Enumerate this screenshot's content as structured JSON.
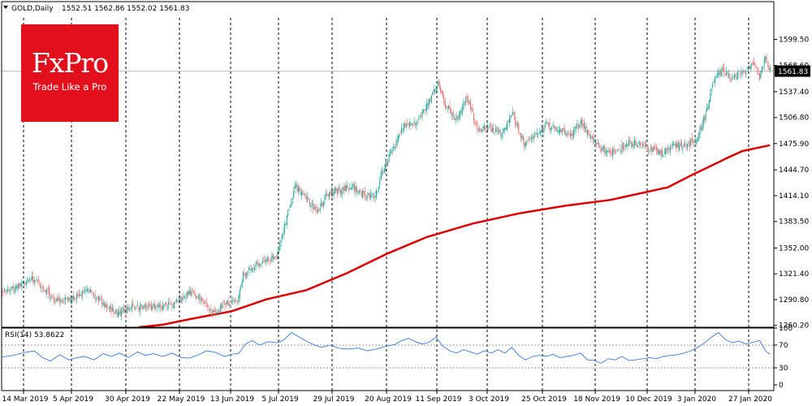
{
  "header": {
    "symbol": "GOLD,Daily",
    "ohlc": "1552.51 1562.86 1552.02 1561.83"
  },
  "logo": {
    "name": "FxPro",
    "tagline": "Trade Like a Pro"
  },
  "colors": {
    "bull": "#26a69a",
    "bear": "#e57373",
    "ma_line": "#dd0000",
    "rsi_line": "#3a7ad6",
    "price_tag_bg": "#000000",
    "grid": "#000000",
    "logo_bg": "#e30f1c"
  },
  "chart_data": [
    {
      "type": "candlestick",
      "title": "",
      "symbol": "GOLD,Daily",
      "current_price": "1561.83",
      "y_ticks": [
        "1599.50",
        "1568.60",
        "1537.40",
        "1506.80",
        "1475.90",
        "1444.70",
        "1414.10",
        "1383.50",
        "1352.00",
        "1321.40",
        "1290.80",
        "1260.20"
      ],
      "y_tick_values": [
        1599.5,
        1568.6,
        1537.4,
        1506.8,
        1475.9,
        1444.7,
        1414.1,
        1383.5,
        1352.0,
        1321.4,
        1290.8,
        1260.2
      ],
      "ylim": [
        1258,
        1625
      ],
      "x_ticks": [
        "14 Mar 2019",
        "5 Apr 2019",
        "30 Apr 2019",
        "22 May 2019",
        "13 Jun 2019",
        "5 Jul 2019",
        "29 Jul 2019",
        "20 Aug 2019",
        "11 Sep 2019",
        "3 Oct 2019",
        "25 Oct 2019",
        "18 Nov 2019",
        "10 Dec 2019",
        "3 Jan 2020",
        "27 Jan 2020"
      ],
      "close_path": [
        [
          0,
          1302
        ],
        [
          15,
          1306
        ],
        [
          25,
          1316
        ],
        [
          35,
          1308
        ],
        [
          45,
          1290
        ],
        [
          60,
          1290
        ],
        [
          75,
          1303
        ],
        [
          90,
          1282
        ],
        [
          100,
          1276
        ],
        [
          110,
          1280
        ],
        [
          125,
          1283
        ],
        [
          140,
          1282
        ],
        [
          150,
          1286
        ],
        [
          165,
          1300
        ],
        [
          175,
          1289
        ],
        [
          185,
          1276
        ],
        [
          195,
          1287
        ],
        [
          205,
          1287
        ],
        [
          210,
          1320
        ],
        [
          220,
          1330
        ],
        [
          230,
          1338
        ],
        [
          240,
          1345
        ],
        [
          248,
          1390
        ],
        [
          255,
          1425
        ],
        [
          265,
          1410
        ],
        [
          275,
          1395
        ],
        [
          285,
          1420
        ],
        [
          295,
          1420
        ],
        [
          305,
          1425
        ],
        [
          315,
          1415
        ],
        [
          325,
          1412
        ],
        [
          330,
          1438
        ],
        [
          340,
          1470
        ],
        [
          350,
          1498
        ],
        [
          360,
          1500
        ],
        [
          370,
          1520
        ],
        [
          380,
          1550
        ],
        [
          385,
          1525
        ],
        [
          395,
          1505
        ],
        [
          405,
          1530
        ],
        [
          415,
          1490
        ],
        [
          425,
          1495
        ],
        [
          435,
          1486
        ],
        [
          445,
          1510
        ],
        [
          455,
          1475
        ],
        [
          465,
          1490
        ],
        [
          475,
          1497
        ],
        [
          485,
          1492
        ],
        [
          495,
          1485
        ],
        [
          505,
          1502
        ],
        [
          515,
          1478
        ],
        [
          525,
          1468
        ],
        [
          535,
          1465
        ],
        [
          545,
          1478
        ],
        [
          555,
          1475
        ],
        [
          565,
          1470
        ],
        [
          575,
          1464
        ],
        [
          585,
          1474
        ],
        [
          595,
          1472
        ],
        [
          605,
          1482
        ],
        [
          612,
          1507
        ],
        [
          620,
          1550
        ],
        [
          628,
          1563
        ],
        [
          635,
          1552
        ],
        [
          645,
          1560
        ],
        [
          655,
          1573
        ],
        [
          660,
          1555
        ],
        [
          665,
          1580
        ],
        [
          669,
          1561.83
        ]
      ],
      "sma_path": [
        [
          119,
          1258
        ],
        [
          140,
          1261
        ],
        [
          165,
          1268
        ],
        [
          200,
          1277
        ],
        [
          230,
          1291
        ],
        [
          265,
          1302
        ],
        [
          300,
          1322
        ],
        [
          335,
          1345
        ],
        [
          370,
          1365
        ],
        [
          410,
          1381
        ],
        [
          450,
          1393
        ],
        [
          490,
          1402
        ],
        [
          530,
          1409
        ],
        [
          560,
          1418
        ],
        [
          580,
          1424
        ],
        [
          600,
          1438
        ],
        [
          620,
          1451
        ],
        [
          632,
          1459
        ],
        [
          645,
          1467
        ],
        [
          669,
          1474
        ]
      ]
    },
    {
      "type": "line",
      "title": "RSI(14) 53.8622",
      "y_ticks": [
        "100",
        "70",
        "30",
        "0"
      ],
      "y_tick_values": [
        100,
        70,
        30,
        0
      ],
      "ylim": [
        -10,
        100
      ],
      "levels": [
        70,
        30
      ],
      "rsi_values": [
        [
          0,
          49
        ],
        [
          10,
          52
        ],
        [
          20,
          57
        ],
        [
          28,
          60
        ],
        [
          35,
          48
        ],
        [
          42,
          42
        ],
        [
          50,
          53
        ],
        [
          58,
          44
        ],
        [
          65,
          48
        ],
        [
          72,
          50
        ],
        [
          80,
          44
        ],
        [
          88,
          55
        ],
        [
          95,
          50
        ],
        [
          102,
          56
        ],
        [
          110,
          48
        ],
        [
          118,
          58
        ],
        [
          125,
          52
        ],
        [
          132,
          55
        ],
        [
          140,
          50
        ],
        [
          148,
          56
        ],
        [
          156,
          48
        ],
        [
          163,
          47
        ],
        [
          170,
          52
        ],
        [
          178,
          60
        ],
        [
          186,
          57
        ],
        [
          194,
          50
        ],
        [
          200,
          54
        ],
        [
          206,
          55
        ],
        [
          212,
          72
        ],
        [
          218,
          78
        ],
        [
          224,
          70
        ],
        [
          232,
          76
        ],
        [
          240,
          74
        ],
        [
          246,
          80
        ],
        [
          252,
          92
        ],
        [
          258,
          85
        ],
        [
          264,
          78
        ],
        [
          270,
          72
        ],
        [
          278,
          66
        ],
        [
          286,
          70
        ],
        [
          294,
          64
        ],
        [
          302,
          63
        ],
        [
          310,
          65
        ],
        [
          318,
          60
        ],
        [
          326,
          63
        ],
        [
          334,
          68
        ],
        [
          342,
          71
        ],
        [
          348,
          78
        ],
        [
          354,
          82
        ],
        [
          360,
          76
        ],
        [
          366,
          72
        ],
        [
          372,
          75
        ],
        [
          378,
          84
        ],
        [
          384,
          68
        ],
        [
          390,
          60
        ],
        [
          396,
          56
        ],
        [
          402,
          62
        ],
        [
          408,
          58
        ],
        [
          414,
          54
        ],
        [
          420,
          60
        ],
        [
          426,
          56
        ],
        [
          432,
          62
        ],
        [
          438,
          56
        ],
        [
          444,
          66
        ],
        [
          450,
          52
        ],
        [
          456,
          44
        ],
        [
          462,
          50
        ],
        [
          468,
          52
        ],
        [
          474,
          50
        ],
        [
          480,
          54
        ],
        [
          486,
          48
        ],
        [
          492,
          50
        ],
        [
          498,
          52
        ],
        [
          504,
          56
        ],
        [
          510,
          44
        ],
        [
          516,
          43
        ],
        [
          522,
          38
        ],
        [
          528,
          46
        ],
        [
          534,
          44
        ],
        [
          540,
          50
        ],
        [
          546,
          43
        ],
        [
          552,
          44
        ],
        [
          558,
          46
        ],
        [
          564,
          48
        ],
        [
          570,
          46
        ],
        [
          576,
          50
        ],
        [
          582,
          52
        ],
        [
          588,
          53
        ],
        [
          594,
          56
        ],
        [
          600,
          60
        ],
        [
          606,
          66
        ],
        [
          612,
          74
        ],
        [
          618,
          84
        ],
        [
          624,
          92
        ],
        [
          630,
          80
        ],
        [
          636,
          74
        ],
        [
          642,
          77
        ],
        [
          648,
          72
        ],
        [
          654,
          75
        ],
        [
          660,
          78
        ],
        [
          665,
          60
        ],
        [
          669,
          53.8622
        ]
      ]
    }
  ]
}
